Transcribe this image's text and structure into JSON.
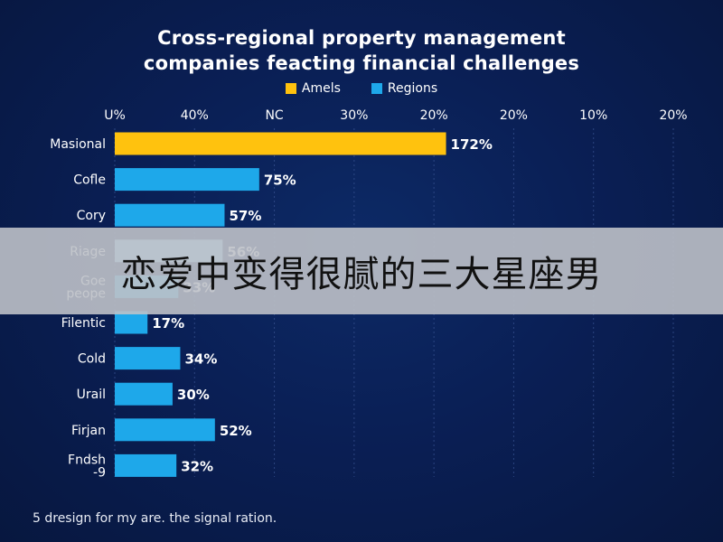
{
  "chart_data": {
    "type": "bar",
    "orientation": "horizontal",
    "title": "Cross-regional property management companies feacting financial challenges",
    "title_lines": [
      "Cross-regional property management",
      "companies feacting financial challenges"
    ],
    "legend": [
      {
        "label": "Amels",
        "color": "#ffc20e"
      },
      {
        "label": "Regions",
        "color": "#1ea8ea"
      }
    ],
    "legend_placement": "top",
    "x_tick_labels": [
      "U%",
      "40%",
      "NC",
      "30%",
      "20%",
      "20%",
      "10%",
      "20%"
    ],
    "xlim": [
      0,
      290
    ],
    "grid": true,
    "categories": [
      "Masional",
      "Cofle",
      "Cory",
      "Riage",
      "Goe\npeope",
      "Filentic",
      "Cold",
      "Urail",
      "Firjan",
      "Fndsh\n-9"
    ],
    "values": [
      172,
      75,
      57,
      56,
      33,
      17,
      34,
      30,
      52,
      32
    ],
    "value_labels": [
      "172%",
      "75%",
      "57%",
      "56%",
      "33%",
      "17%",
      "34%",
      "30%",
      "52%",
      "32%"
    ],
    "bar_colors": [
      "#ffc20e",
      "#1ea8ea",
      "#1ea8ea",
      "#8fd6f7",
      "#1ea8ea",
      "#1ea8ea",
      "#1ea8ea",
      "#1ea8ea",
      "#1ea8ea",
      "#1ea8ea"
    ],
    "label_colors": [
      "#ffffff",
      "#ffffff",
      "#ffffff",
      "#ffffff",
      "#ffffff",
      "#ffffff",
      "#ffffff",
      "#ffffff",
      "#ffffff",
      "#ffffff"
    ]
  },
  "footnote": "5 dresign for my are. the signal ration.",
  "overlay_text": "恋爱中变得很腻的三大星座男",
  "colors": {
    "background": "#0a1f55",
    "grid": "#3a5594",
    "accent_gold": "#ffc20e",
    "accent_blue": "#1ea8ea",
    "overlay_band": "#bec1c8"
  }
}
